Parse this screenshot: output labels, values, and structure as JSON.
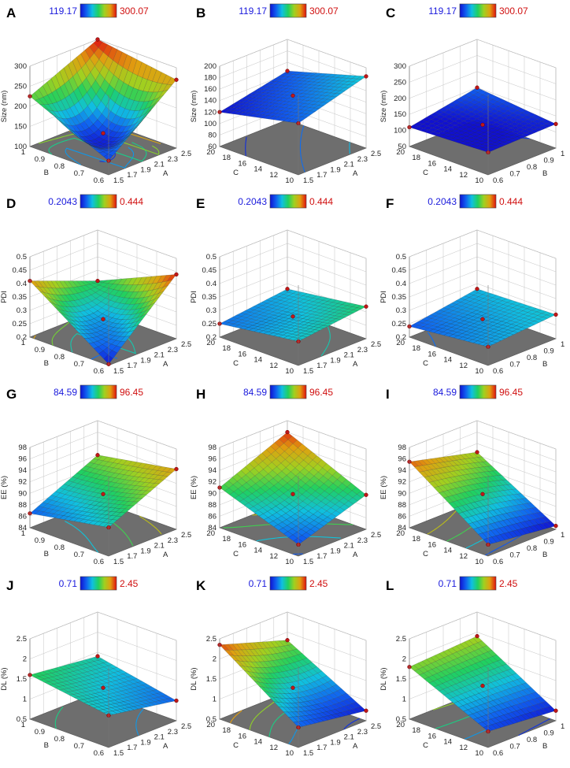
{
  "figure": {
    "colormap": [
      "#1010d0",
      "#1060f0",
      "#10c0e0",
      "#20d060",
      "#a0d020",
      "#e0a010",
      "#e01010"
    ]
  },
  "chart_data": [
    {
      "panel": "A",
      "type": "surface",
      "cb_min": "119.17",
      "cb_max": "300.07",
      "zlabel": "Size (nm)",
      "zticks": [
        "100",
        "150",
        "200",
        "250",
        "300"
      ],
      "xvar": "A",
      "yvar": "B",
      "xticks": [
        "1.5",
        "1.7",
        "1.9",
        "2.1",
        "2.3",
        "2.5"
      ],
      "yticks": [
        "0.6",
        "0.7",
        "0.8",
        "0.9",
        "1"
      ],
      "zlim": [
        100,
        300
      ],
      "corners": [
        225,
        135,
        270,
        300
      ],
      "center": 135,
      "shape": "bowl"
    },
    {
      "panel": "B",
      "type": "surface",
      "cb_min": "119.17",
      "cb_max": "300.07",
      "zlabel": "Size (nm)",
      "zticks": [
        "60",
        "80",
        "100",
        "120",
        "140",
        "160",
        "180",
        "200"
      ],
      "xvar": "A",
      "yvar": "C",
      "xticks": [
        "1.5",
        "1.7",
        "1.9",
        "2.1",
        "2.3",
        "2.5"
      ],
      "yticks": [
        "10",
        "12",
        "14",
        "16",
        "18",
        "20"
      ],
      "zlim": [
        60,
        200
      ],
      "corners": [
        120,
        150,
        185,
        145
      ],
      "center": 150,
      "shape": "saddle"
    },
    {
      "panel": "C",
      "type": "surface",
      "cb_min": "119.17",
      "cb_max": "300.07",
      "zlabel": "Size (nm)",
      "zticks": [
        "50",
        "100",
        "150",
        "200",
        "250",
        "300"
      ],
      "xvar": "B",
      "yvar": "C",
      "xticks": [
        "0.6",
        "0.7",
        "0.8",
        "0.9",
        "1"
      ],
      "yticks": [
        "10",
        "12",
        "14",
        "16",
        "18",
        "20"
      ],
      "zlim": [
        50,
        300
      ],
      "corners": [
        110,
        120,
        125,
        150
      ],
      "center": 120,
      "shape": "saddle"
    },
    {
      "panel": "D",
      "type": "surface",
      "cb_min": "0.2043",
      "cb_max": "0.444",
      "zlabel": "PDI",
      "zticks": [
        "0.2",
        "0.25",
        "0.3",
        "0.35",
        "0.4",
        "0.45",
        "0.5"
      ],
      "xvar": "A",
      "yvar": "B",
      "xticks": [
        "1.5",
        "1.7",
        "1.9",
        "2.1",
        "2.3",
        "2.5"
      ],
      "yticks": [
        "0.6",
        "0.7",
        "0.8",
        "0.9",
        "1"
      ],
      "zlim": [
        0.2,
        0.5
      ],
      "corners": [
        0.41,
        0.205,
        0.44,
        0.31
      ],
      "center": 0.27,
      "shape": "bowl"
    },
    {
      "panel": "E",
      "type": "surface",
      "cb_min": "0.2043",
      "cb_max": "0.444",
      "zlabel": "PDI",
      "zticks": [
        "0.2",
        "0.25",
        "0.3",
        "0.35",
        "0.4",
        "0.45",
        "0.5"
      ],
      "xvar": "A",
      "yvar": "C",
      "xticks": [
        "1.5",
        "1.7",
        "1.9",
        "2.1",
        "2.3",
        "2.5"
      ],
      "yticks": [
        "10",
        "12",
        "14",
        "16",
        "18",
        "20"
      ],
      "zlim": [
        0.2,
        0.5
      ],
      "corners": [
        0.25,
        0.29,
        0.32,
        0.28
      ],
      "center": 0.28,
      "shape": "saddle"
    },
    {
      "panel": "F",
      "type": "surface",
      "cb_min": "0.2043",
      "cb_max": "0.444",
      "zlabel": "PDI",
      "zticks": [
        "0.2",
        "0.25",
        "0.3",
        "0.35",
        "0.4",
        "0.45",
        "0.5"
      ],
      "xvar": "B",
      "yvar": "C",
      "xticks": [
        "0.6",
        "0.7",
        "0.8",
        "0.9",
        "1"
      ],
      "yticks": [
        "10",
        "12",
        "14",
        "16",
        "18",
        "20"
      ],
      "zlim": [
        0.2,
        0.5
      ],
      "corners": [
        0.24,
        0.27,
        0.29,
        0.28
      ],
      "center": 0.27,
      "shape": "saddle"
    },
    {
      "panel": "G",
      "type": "surface",
      "cb_min": "84.59",
      "cb_max": "96.45",
      "zlabel": "EE (%)",
      "zticks": [
        "84",
        "86",
        "88",
        "90",
        "92",
        "94",
        "96",
        "98"
      ],
      "xvar": "A",
      "yvar": "B",
      "xticks": [
        "1.5",
        "1.7",
        "1.9",
        "2.1",
        "2.3",
        "2.5"
      ],
      "yticks": [
        "0.6",
        "0.7",
        "0.8",
        "0.9",
        "1"
      ],
      "zlim": [
        84,
        98
      ],
      "corners": [
        86.5,
        89,
        94.5,
        92
      ],
      "center": 90,
      "shape": "plane"
    },
    {
      "panel": "H",
      "type": "surface",
      "cb_min": "84.59",
      "cb_max": "96.45",
      "zlabel": "EE (%)",
      "zticks": [
        "84",
        "86",
        "88",
        "90",
        "92",
        "94",
        "96",
        "98"
      ],
      "xvar": "A",
      "yvar": "C",
      "xticks": [
        "1.5",
        "1.7",
        "1.9",
        "2.1",
        "2.3",
        "2.5"
      ],
      "yticks": [
        "10",
        "12",
        "14",
        "16",
        "18",
        "20"
      ],
      "zlim": [
        84,
        98
      ],
      "corners": [
        91,
        86,
        90,
        96
      ],
      "center": 90,
      "shape": "plane"
    },
    {
      "panel": "I",
      "type": "surface",
      "cb_min": "84.59",
      "cb_max": "96.45",
      "zlabel": "EE (%)",
      "zticks": [
        "84",
        "86",
        "88",
        "90",
        "92",
        "94",
        "96",
        "98"
      ],
      "xvar": "B",
      "yvar": "C",
      "xticks": [
        "0.6",
        "0.7",
        "0.8",
        "0.9",
        "1"
      ],
      "yticks": [
        "10",
        "12",
        "14",
        "16",
        "18",
        "20"
      ],
      "zlim": [
        84,
        98
      ],
      "corners": [
        95.5,
        86,
        84.6,
        92.5
      ],
      "center": 90,
      "shape": "plane"
    },
    {
      "panel": "J",
      "type": "surface",
      "cb_min": "0.71",
      "cb_max": "2.45",
      "zlabel": "DL (%)",
      "zticks": [
        "0.5",
        "1",
        "1.5",
        "2",
        "2.5"
      ],
      "xvar": "A",
      "yvar": "B",
      "xticks": [
        "1.5",
        "1.7",
        "1.9",
        "2.1",
        "2.3",
        "2.5"
      ],
      "yticks": [
        "0.6",
        "0.7",
        "0.8",
        "0.9",
        "1"
      ],
      "zlim": [
        0.5,
        2.5
      ],
      "corners": [
        1.6,
        1.3,
        1.0,
        1.4
      ],
      "center": 1.3,
      "shape": "plane"
    },
    {
      "panel": "K",
      "type": "surface",
      "cb_min": "0.71",
      "cb_max": "2.45",
      "zlabel": "DL (%)",
      "zticks": [
        "0.5",
        "1",
        "1.5",
        "2",
        "2.5"
      ],
      "xvar": "A",
      "yvar": "C",
      "xticks": [
        "1.5",
        "1.7",
        "1.9",
        "2.1",
        "2.3",
        "2.5"
      ],
      "yticks": [
        "10",
        "12",
        "14",
        "16",
        "18",
        "20"
      ],
      "zlim": [
        0.5,
        2.5
      ],
      "corners": [
        2.35,
        1.0,
        0.75,
        1.8
      ],
      "center": 1.3,
      "shape": "plane"
    },
    {
      "panel": "L",
      "type": "surface",
      "cb_min": "0.71",
      "cb_max": "2.45",
      "zlabel": "DL (%)",
      "zticks": [
        "0.5",
        "1",
        "1.5",
        "2",
        "2.5"
      ],
      "xvar": "B",
      "yvar": "C",
      "xticks": [
        "0.6",
        "0.7",
        "0.8",
        "0.9",
        "1"
      ],
      "yticks": [
        "10",
        "12",
        "14",
        "16",
        "18",
        "20"
      ],
      "zlim": [
        0.5,
        2.5
      ],
      "corners": [
        1.8,
        0.9,
        0.75,
        1.9
      ],
      "center": 1.35,
      "shape": "plane"
    }
  ]
}
